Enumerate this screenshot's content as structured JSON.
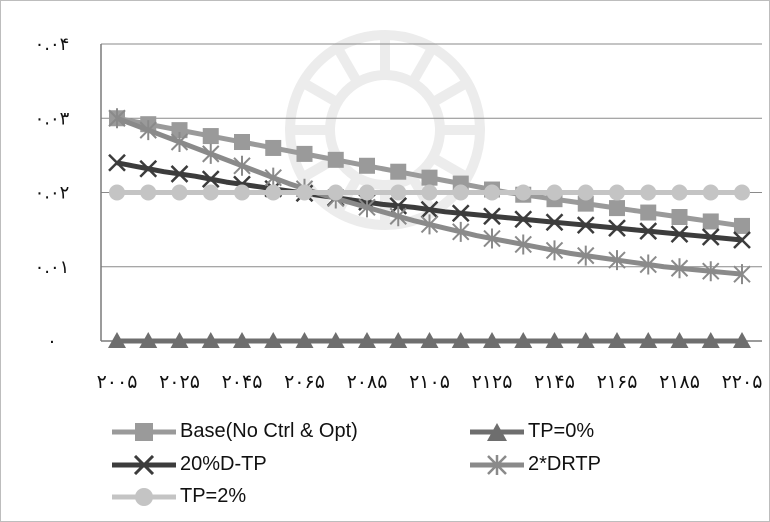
{
  "chart_data": {
    "type": "line",
    "title": "",
    "xlabel": "",
    "ylabel": "",
    "ylim": [
      0,
      0.04
    ],
    "y_ticks": [
      0,
      0.01,
      0.02,
      0.03,
      0.04
    ],
    "y_tick_labels": [
      "۰",
      "۰.۰۱",
      "۰.۰۲",
      "۰.۰۳",
      "۰.۰۴"
    ],
    "x": [
      2005,
      2010,
      2015,
      2020,
      2025,
      2030,
      2035,
      2040,
      2045,
      2050,
      2055,
      2060,
      2065,
      2070,
      2075,
      2080,
      2085,
      2090,
      2095,
      2100,
      2105,
      2110,
      2115,
      2120,
      2125,
      2130,
      2135,
      2140,
      2145,
      2150,
      2155,
      2160,
      2165,
      2170,
      2175,
      2180,
      2185,
      2190,
      2195,
      2200,
      2205
    ],
    "x_tick_values": [
      2005,
      2025,
      2045,
      2065,
      2085,
      2105,
      2125,
      2145,
      2165,
      2185,
      2205
    ],
    "x_tick_labels": [
      "۲۰۰۵",
      "۲۰۲۵",
      "۲۰۴۵",
      "۲۰۶۵",
      "۲۰۸۵",
      "۲۱۰۵",
      "۲۱۲۵",
      "۲۱۴۵",
      "۲۱۶۵",
      "۲۱۸۵",
      "۲۲۰۵"
    ],
    "grid": "horizontal",
    "legend_position": "bottom",
    "series": [
      {
        "name": "Base(No Ctrl & Opt)",
        "color": "#9a9a9a",
        "marker": "square",
        "values": [
          0.03,
          0.0296,
          0.0292,
          0.0288,
          0.0284,
          0.028,
          0.0276,
          0.0272,
          0.0268,
          0.0264,
          0.026,
          0.0256,
          0.0252,
          0.0248,
          0.0244,
          0.024,
          0.0236,
          0.0232,
          0.0228,
          0.0224,
          0.022,
          0.0216,
          0.0212,
          0.0208,
          0.0204,
          0.02,
          0.0197,
          0.0194,
          0.0191,
          0.0188,
          0.0185,
          0.0182,
          0.0179,
          0.0176,
          0.0173,
          0.017,
          0.0167,
          0.0164,
          0.0161,
          0.0158,
          0.0155
        ]
      },
      {
        "name": "TP=0%",
        "color": "#6e6e6e",
        "marker": "triangle",
        "values": [
          0,
          0,
          0,
          0,
          0,
          0,
          0,
          0,
          0,
          0,
          0,
          0,
          0,
          0,
          0,
          0,
          0,
          0,
          0,
          0,
          0,
          0,
          0,
          0,
          0,
          0,
          0,
          0,
          0,
          0,
          0,
          0,
          0,
          0,
          0,
          0,
          0,
          0,
          0,
          0,
          0
        ]
      },
      {
        "name": "20%D-TP",
        "color": "#3c3c3c",
        "marker": "x",
        "values": [
          0.024,
          0.0236,
          0.0232,
          0.0228,
          0.0225,
          0.0222,
          0.0218,
          0.0214,
          0.0211,
          0.0208,
          0.0205,
          0.0202,
          0.0199,
          0.0196,
          0.0193,
          0.019,
          0.0187,
          0.0184,
          0.0182,
          0.018,
          0.0177,
          0.0174,
          0.0172,
          0.017,
          0.0168,
          0.0166,
          0.0164,
          0.0162,
          0.016,
          0.0158,
          0.0156,
          0.0154,
          0.0152,
          0.015,
          0.0148,
          0.0146,
          0.0144,
          0.0142,
          0.014,
          0.0138,
          0.0136
        ]
      },
      {
        "name": "2*DRTP",
        "color": "#8a8a8a",
        "marker": "asterisk",
        "values": [
          0.03,
          0.0292,
          0.0284,
          0.0276,
          0.0268,
          0.026,
          0.0252,
          0.0244,
          0.0236,
          0.0228,
          0.022,
          0.0212,
          0.0205,
          0.0198,
          0.0192,
          0.0186,
          0.018,
          0.0174,
          0.0168,
          0.0162,
          0.0157,
          0.0152,
          0.0147,
          0.0142,
          0.0138,
          0.0134,
          0.013,
          0.0126,
          0.0122,
          0.0118,
          0.0115,
          0.0112,
          0.0109,
          0.0106,
          0.0103,
          0.01,
          0.0098,
          0.0096,
          0.0094,
          0.0092,
          0.009
        ]
      },
      {
        "name": "TP=2%",
        "color": "#c4c4c4",
        "marker": "circle",
        "values": [
          0.02,
          0.02,
          0.02,
          0.02,
          0.02,
          0.02,
          0.02,
          0.02,
          0.02,
          0.02,
          0.02,
          0.02,
          0.02,
          0.02,
          0.02,
          0.02,
          0.02,
          0.02,
          0.02,
          0.02,
          0.02,
          0.02,
          0.02,
          0.02,
          0.02,
          0.02,
          0.02,
          0.02,
          0.02,
          0.02,
          0.02,
          0.02,
          0.02,
          0.02,
          0.02,
          0.02,
          0.02,
          0.02,
          0.02,
          0.02,
          0.02
        ]
      }
    ],
    "legend": [
      "Base(No Ctrl & Opt)",
      "TP=0%",
      "20%D-TP",
      "2*DRTP",
      "TP=2%"
    ]
  }
}
